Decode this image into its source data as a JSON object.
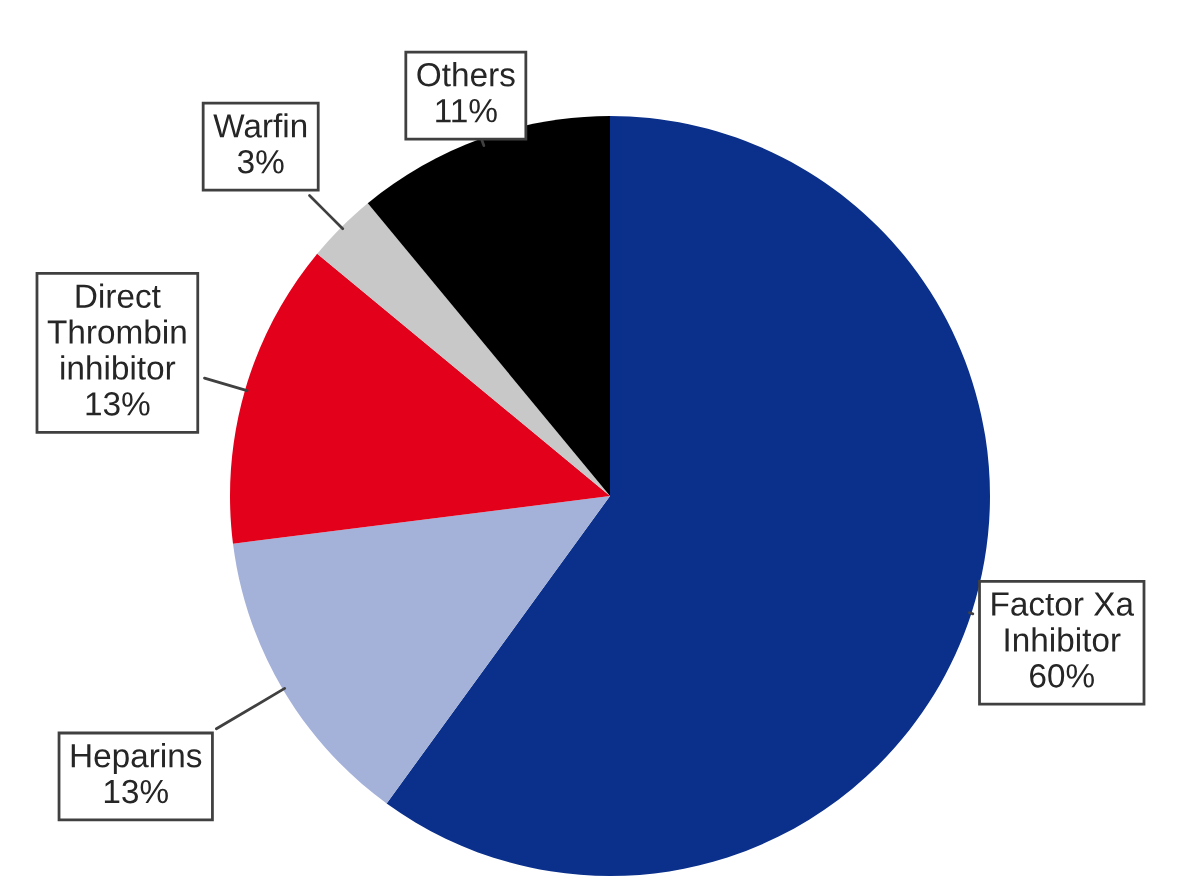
{
  "chart_data": {
    "type": "pie",
    "categories": [
      "Factor Xa\nInhibitor",
      "Heparins",
      "Direct\nThrombin\ninhibitor",
      "Warfin",
      "Others"
    ],
    "values": [
      60,
      13,
      13,
      3,
      11
    ],
    "colors": [
      "#0a308c",
      "#a4b1d9",
      "#e3001b",
      "#c8c8c8",
      "#000000"
    ],
    "value_labels": [
      "60%",
      "13%",
      "13%",
      "3%",
      "11%"
    ]
  }
}
